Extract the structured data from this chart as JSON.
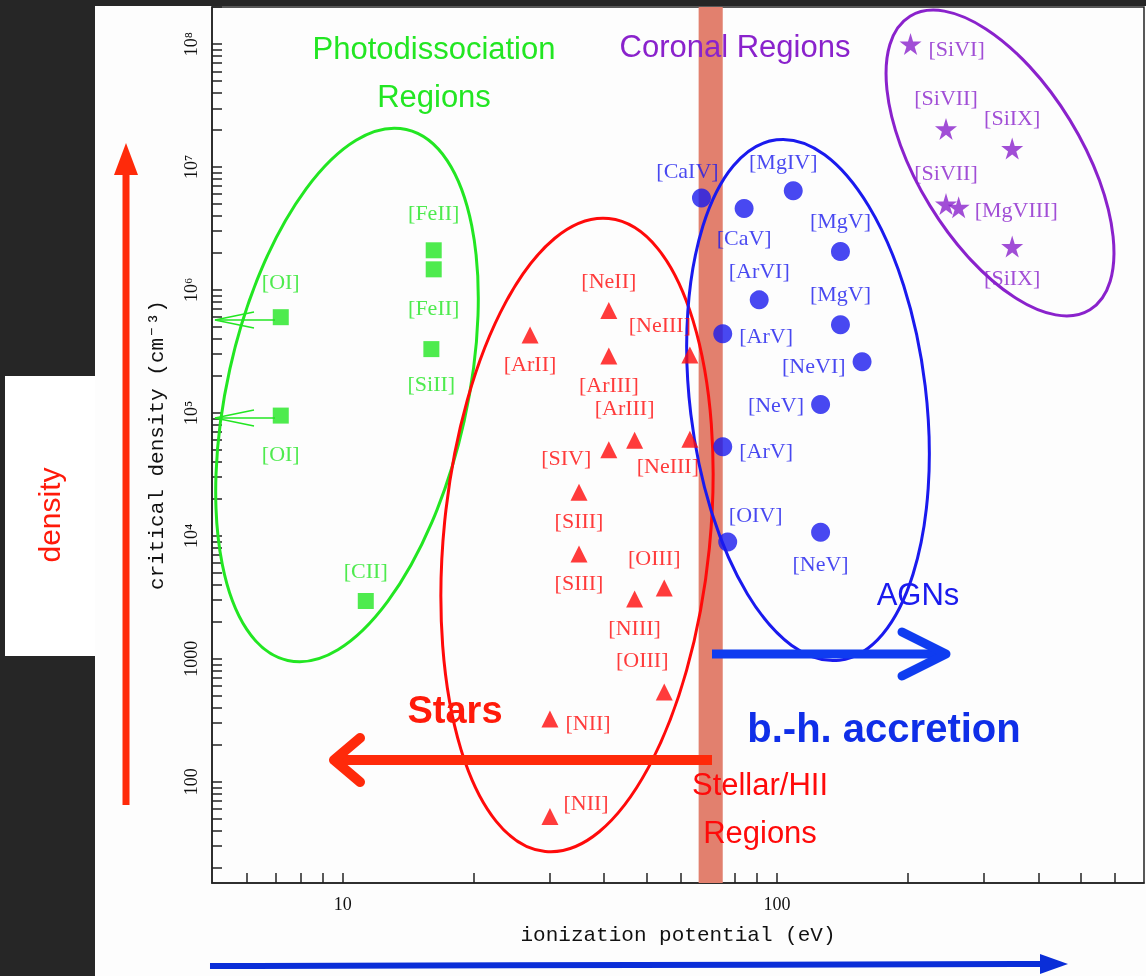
{
  "chart_data": {
    "type": "scatter",
    "xlabel": "ionization potential (eV)",
    "ylabel": "critical density (cm⁻³)",
    "log": "xy",
    "xlim": [
      5,
      700
    ],
    "xticks": [
      {
        "value": 6,
        "label": null
      },
      {
        "value": 7,
        "label": null
      },
      {
        "value": 8,
        "label": null
      },
      {
        "value": 9,
        "label": null
      },
      10,
      {
        "value": 20,
        "label": null
      },
      {
        "value": 30,
        "label": null
      },
      {
        "value": 40,
        "label": null
      },
      {
        "value": 50,
        "label": null
      },
      {
        "value": 60,
        "label": null
      },
      {
        "value": 70,
        "label": null
      },
      {
        "value": 80,
        "label": null
      },
      {
        "value": 90,
        "label": null
      },
      100,
      {
        "value": 200,
        "label": null
      },
      {
        "value": 300,
        "label": null
      },
      {
        "value": 400,
        "label": null
      },
      {
        "value": 500,
        "label": null
      },
      {
        "value": 600,
        "label": null
      }
    ],
    "ylim": [
      15,
      200000000
    ],
    "yticks": [
      {
        "value": 20,
        "label": null
      },
      {
        "value": 30,
        "label": null
      },
      {
        "value": 40,
        "label": null
      },
      {
        "value": 50,
        "label": null
      },
      {
        "value": 60,
        "label": null
      },
      {
        "value": 70,
        "label": null
      },
      {
        "value": 80,
        "label": null
      },
      {
        "value": 90,
        "label": null
      },
      100,
      {
        "value": 200,
        "label": null
      },
      {
        "value": 300,
        "label": null
      },
      {
        "value": 400,
        "label": null
      },
      {
        "value": 500,
        "label": null
      },
      {
        "value": 600,
        "label": null
      },
      {
        "value": 700,
        "label": null
      },
      {
        "value": 800,
        "label": null
      },
      {
        "value": 900,
        "label": null
      },
      1000,
      {
        "value": 2000,
        "label": null
      },
      {
        "value": 3000,
        "label": null
      },
      {
        "value": 4000,
        "label": null
      },
      {
        "value": 5000,
        "label": null
      },
      {
        "value": 6000,
        "label": null
      },
      {
        "value": 7000,
        "label": null
      },
      {
        "value": 8000,
        "label": null
      },
      {
        "value": 9000,
        "label": null
      },
      {
        "value": 10000,
        "label": "10⁴"
      },
      {
        "value": 20000,
        "label": null
      },
      {
        "value": 30000,
        "label": null
      },
      {
        "value": 40000,
        "label": null
      },
      {
        "value": 50000,
        "label": null
      },
      {
        "value": 60000,
        "label": null
      },
      {
        "value": 70000,
        "label": null
      },
      {
        "value": 80000,
        "label": null
      },
      {
        "value": 90000,
        "label": null
      },
      {
        "value": 100000,
        "label": "10⁵"
      },
      {
        "value": 200000,
        "label": null
      },
      {
        "value": 300000,
        "label": null
      },
      {
        "value": 400000,
        "label": null
      },
      {
        "value": 500000,
        "label": null
      },
      {
        "value": 600000,
        "label": null
      },
      {
        "value": 700000,
        "label": null
      },
      {
        "value": 800000,
        "label": null
      },
      {
        "value": 900000,
        "label": null
      },
      {
        "value": 1000000,
        "label": "10⁶"
      },
      {
        "value": 2000000,
        "label": null
      },
      {
        "value": 3000000,
        "label": null
      },
      {
        "value": 4000000,
        "label": null
      },
      {
        "value": 5000000,
        "label": null
      },
      {
        "value": 6000000,
        "label": null
      },
      {
        "value": 7000000,
        "label": null
      },
      {
        "value": 8000000,
        "label": null
      },
      {
        "value": 9000000,
        "label": null
      },
      {
        "value": 10000000,
        "label": "10⁷"
      },
      {
        "value": 20000000,
        "label": null
      },
      {
        "value": 30000000,
        "label": null
      },
      {
        "value": 40000000,
        "label": null
      },
      {
        "value": 50000000,
        "label": null
      },
      {
        "value": 60000000,
        "label": null
      },
      {
        "value": 70000000,
        "label": null
      },
      {
        "value": 80000000,
        "label": null
      },
      {
        "value": 90000000,
        "label": null
      },
      {
        "value": 100000000,
        "label": "10⁸"
      },
      {
        "value": 200000000,
        "label": null
      }
    ],
    "grid": false,
    "legend": false,
    "series": [
      {
        "name": "Photodissociation Regions",
        "color": "#22e622",
        "marker": "square",
        "x": [
          7.2,
          7.2,
          16.2,
          16.2,
          16,
          11.3
        ],
        "values": [
          600000,
          95000,
          2100000,
          1470000,
          330000,
          2950
        ],
        "value_labels": [
          "[OI]",
          "[OI]",
          "[FeII]",
          "[FeII]",
          "[SiII]",
          "[CII]"
        ]
      },
      {
        "name": "Stellar/HII Regions",
        "color": "#ff0a0a",
        "marker": "triangle",
        "x": [
          27,
          41,
          41,
          63,
          41,
          47,
          63,
          35,
          35,
          47,
          55,
          55,
          30,
          30
        ],
        "values": [
          430000,
          680000,
          290000,
          295000,
          50000,
          60000,
          61000,
          22600,
          7100,
          3060,
          3760,
          537,
          324,
          52
        ],
        "value_labels": [
          "[ArII]",
          "[NeII]",
          "[ArIII]",
          "[NeIII]",
          "[SIV]",
          "[ArIII]",
          "[NeIII]",
          "[SIII]",
          "[SIII]",
          "[NIII]",
          "[OIII]",
          "[OIII]",
          "[NII]",
          "[NII]"
        ]
      },
      {
        "name": "AGNs",
        "color": "#1a1aee",
        "marker": "circle",
        "x": [
          67,
          84,
          109,
          140,
          91,
          140,
          75,
          157,
          126,
          75,
          77,
          126
        ],
        "values": [
          5600000,
          4600000,
          6400000,
          2050000,
          830000,
          520000,
          440000,
          260000,
          117000,
          53000,
          8900,
          10700
        ],
        "value_labels": [
          "[CaIV]",
          "[CaV]",
          "[MgIV]",
          "[MgV]",
          "[ArVI]",
          "[MgV]",
          "[ArV]",
          "[NeVI]",
          "[NeV]",
          "[ArV]",
          "[OIV]",
          "[NeV]"
        ]
      },
      {
        "name": "Coronal Regions",
        "color": "#8a22cc",
        "marker": "star",
        "x": [
          203,
          245,
          348,
          245,
          262,
          348
        ],
        "values": [
          100000000,
          20400000,
          14100000,
          5000000,
          4700000,
          2250000
        ],
        "value_labels": [
          "[SiVI]",
          "[SiVII]",
          "[SiIX]",
          "[SiVII]",
          "[MgVIII]",
          "[SiIX]"
        ]
      }
    ],
    "bands": [
      {
        "axis": "x",
        "from": 66,
        "to": 75,
        "color": "#e2806e"
      }
    ],
    "annotations": [
      "Stars",
      "b.-h. accretion",
      "density"
    ]
  }
}
